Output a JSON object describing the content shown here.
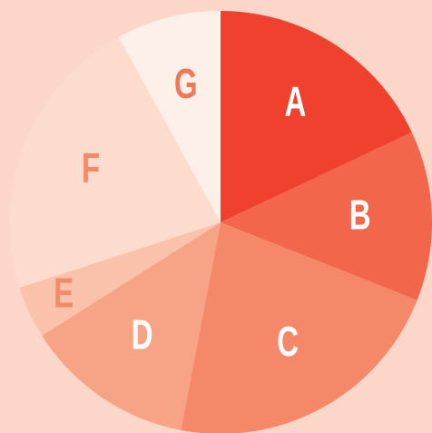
{
  "chart_data": {
    "type": "pie",
    "categories": [
      "A",
      "B",
      "C",
      "D",
      "E",
      "F",
      "G"
    ],
    "values": [
      18,
      13,
      22,
      13,
      4,
      22,
      8
    ],
    "colors": [
      "#f0412f",
      "#f2664b",
      "#f6886a",
      "#f7a486",
      "#fac1ab",
      "#fddcce",
      "#fdf0e9"
    ],
    "label_colors": [
      "#ffffff",
      "#ffffff",
      "#ffffff",
      "#ffffff",
      "#f38a6b",
      "#f38a6b",
      "#f0785a"
    ]
  }
}
